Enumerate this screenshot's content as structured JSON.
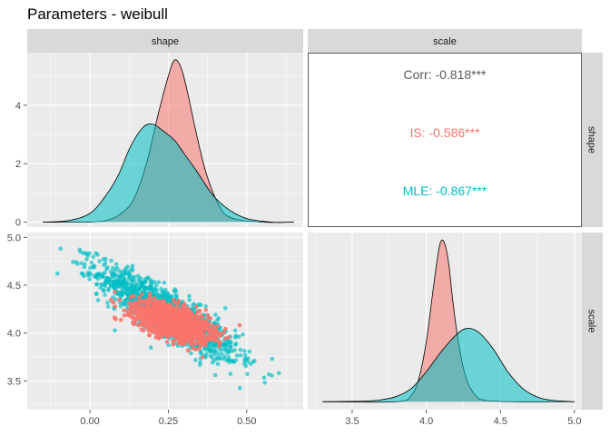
{
  "chart_data": {
    "type": "pairs",
    "title": "Parameters - weibull",
    "variables": [
      "shape",
      "scale"
    ],
    "colors": {
      "is": "#F8766D",
      "mle": "#00BFC4",
      "corr": "#595959",
      "panel": "#EBEBEB",
      "strip": "#D9D9D9"
    },
    "axes": {
      "shape": {
        "range": [
          -0.2,
          0.68
        ],
        "ticks": [
          0.0,
          0.25,
          0.5
        ],
        "tick_labels": [
          "0.00",
          "0.25",
          "0.50"
        ]
      },
      "scale": {
        "range": [
          3.2,
          5.05
        ],
        "ticks": [
          3.5,
          4.0,
          4.5,
          5.0
        ],
        "tick_labels": [
          "3.5",
          "4.0",
          "4.5",
          "5.0"
        ]
      },
      "shape_density": {
        "range": [
          -0.17,
          5.8
        ],
        "ticks": [
          0,
          2,
          4
        ],
        "tick_labels": [
          "0",
          "2",
          "4"
        ]
      }
    },
    "panels": [
      {
        "id": "shape-density",
        "type": "density",
        "x": "shape",
        "series": [
          {
            "group": "is",
            "x": [
              -0.15,
              -0.02,
              0.05,
              0.1,
              0.14,
              0.18,
              0.22,
              0.25,
              0.27,
              0.29,
              0.31,
              0.34,
              0.37,
              0.41,
              0.45,
              0.55,
              0.65
            ],
            "density": [
              0.0,
              0.0,
              0.05,
              0.3,
              0.8,
              2.0,
              3.8,
              5.0,
              5.55,
              5.3,
              4.5,
              3.0,
              1.7,
              0.6,
              0.15,
              0.0,
              0.0
            ]
          },
          {
            "group": "mle",
            "x": [
              -0.15,
              -0.07,
              0.0,
              0.05,
              0.09,
              0.13,
              0.17,
              0.2,
              0.23,
              0.27,
              0.3,
              0.34,
              0.39,
              0.44,
              0.5,
              0.58,
              0.65
            ],
            "density": [
              0.0,
              0.05,
              0.3,
              0.9,
              1.6,
              2.6,
              3.25,
              3.35,
              3.15,
              2.8,
              2.35,
              1.75,
              0.95,
              0.45,
              0.12,
              0.0,
              0.0
            ]
          }
        ]
      },
      {
        "id": "correlation",
        "type": "text",
        "lines": [
          {
            "group": "corr",
            "text": "Corr: -0.818***"
          },
          {
            "group": "is",
            "text": "IS: -0.586***"
          },
          {
            "group": "mle",
            "text": "MLE: -0.867***"
          }
        ]
      },
      {
        "id": "scatter",
        "type": "scatter",
        "x": "shape",
        "y": "scale",
        "series": [
          {
            "group": "mle",
            "n": 1500,
            "center_x": 0.25,
            "center_y": 4.2,
            "sd_x": 0.11,
            "sd_y": 0.24,
            "rho": -0.87,
            "opacity": 0.65
          },
          {
            "group": "is",
            "n": 1500,
            "center_x": 0.26,
            "center_y": 4.12,
            "sd_x": 0.06,
            "sd_y": 0.1,
            "rho": -0.59,
            "opacity": 0.9
          }
        ]
      },
      {
        "id": "scale-density",
        "type": "density",
        "x": "scale",
        "series": [
          {
            "group": "is",
            "x": [
              3.3,
              3.8,
              3.9,
              3.95,
              4.0,
              4.05,
              4.09,
              4.12,
              4.15,
              4.18,
              4.22,
              4.27,
              4.33,
              4.4,
              4.6,
              5.0
            ],
            "density": [
              0.0,
              0.0,
              0.1,
              0.35,
              0.9,
              1.75,
              2.35,
              2.4,
              2.1,
              1.5,
              0.85,
              0.35,
              0.1,
              0.02,
              0.0,
              0.0
            ]
          },
          {
            "group": "mle",
            "x": [
              3.3,
              3.6,
              3.7,
              3.8,
              3.9,
              4.0,
              4.1,
              4.2,
              4.27,
              4.35,
              4.45,
              4.55,
              4.65,
              4.75,
              4.85,
              5.0
            ],
            "density": [
              0.0,
              0.01,
              0.03,
              0.08,
              0.2,
              0.45,
              0.75,
              1.0,
              1.1,
              1.05,
              0.8,
              0.45,
              0.2,
              0.07,
              0.02,
              0.0
            ]
          }
        ]
      }
    ],
    "grid": true,
    "legend": "none"
  }
}
